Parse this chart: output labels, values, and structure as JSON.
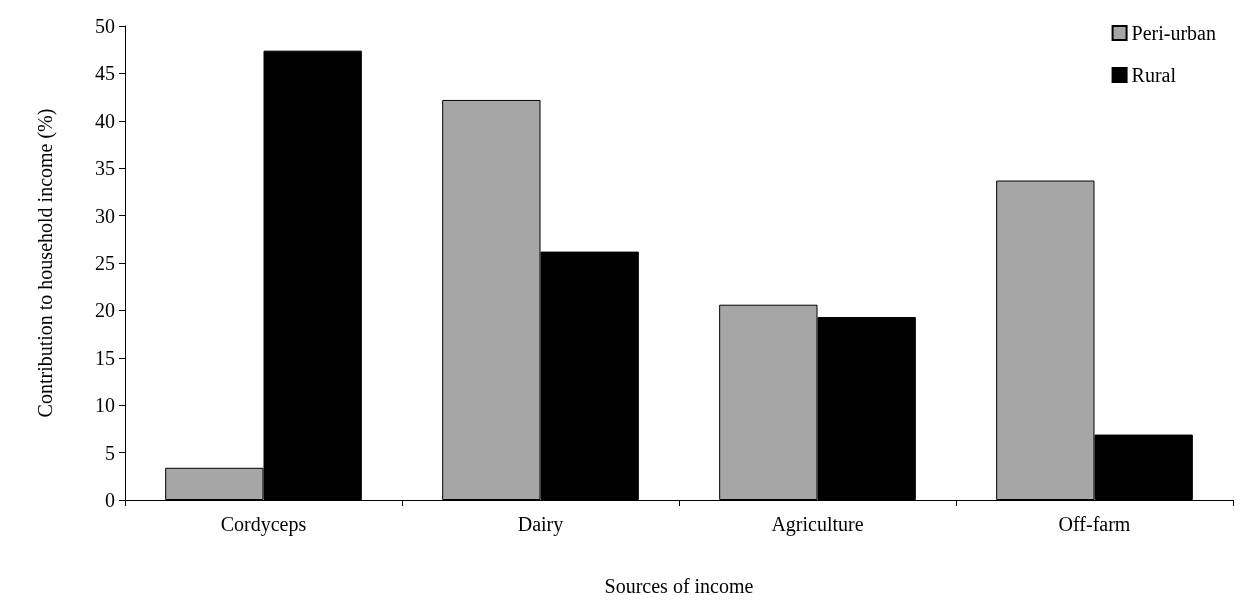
{
  "chart_data": {
    "type": "bar",
    "xlabel": "Sources of income",
    "ylabel": "Contribution to household income (%)",
    "categories": [
      "Cordyceps",
      "Dairy",
      "Agriculture",
      "Off-farm"
    ],
    "series": [
      {
        "name": "Peri-urban",
        "color": "#a6a6a6",
        "values": [
          3.4,
          42.2,
          20.6,
          33.7
        ]
      },
      {
        "name": "Rural",
        "color": "#000000",
        "values": [
          47.4,
          26.2,
          19.3,
          6.9
        ]
      }
    ],
    "ylim": [
      0,
      50
    ],
    "yticks": [
      0,
      5,
      10,
      15,
      20,
      25,
      30,
      35,
      40,
      45,
      50
    ],
    "grid": false,
    "legend": "top right"
  }
}
